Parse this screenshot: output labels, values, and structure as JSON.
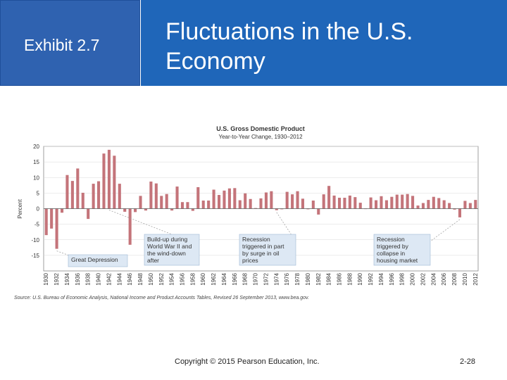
{
  "header": {
    "exhibit_label": "Exhibit 2.7",
    "slide_title": "Fluctuations in the U.S. Economy",
    "exhibit_bg": "#2f62b0",
    "title_bg": "#1f66b9"
  },
  "chart_data": {
    "type": "bar",
    "title": "U.S. Gross Domestic Product",
    "subtitle": "Year-to-Year Change, 1930–2012",
    "ylabel": "Percent",
    "ylim": [
      -20,
      20
    ],
    "yticks": [
      20,
      15,
      10,
      5,
      0,
      -5,
      -10,
      -15
    ],
    "grid": true,
    "bar_color": "#c4747a",
    "categories": [
      1930,
      1931,
      1932,
      1933,
      1934,
      1935,
      1936,
      1937,
      1938,
      1939,
      1940,
      1941,
      1942,
      1943,
      1944,
      1945,
      1946,
      1947,
      1948,
      1949,
      1950,
      1951,
      1952,
      1953,
      1954,
      1955,
      1956,
      1957,
      1958,
      1959,
      1960,
      1961,
      1962,
      1963,
      1964,
      1965,
      1966,
      1967,
      1968,
      1969,
      1970,
      1971,
      1972,
      1973,
      1974,
      1975,
      1976,
      1977,
      1978,
      1979,
      1980,
      1981,
      1982,
      1983,
      1984,
      1985,
      1986,
      1987,
      1988,
      1989,
      1990,
      1991,
      1992,
      1993,
      1994,
      1995,
      1996,
      1997,
      1998,
      1999,
      2000,
      2001,
      2002,
      2003,
      2004,
      2005,
      2006,
      2007,
      2008,
      2009,
      2010,
      2011,
      2012
    ],
    "values": [
      -8.5,
      -6.4,
      -12.9,
      -1.3,
      10.8,
      8.9,
      12.9,
      5.1,
      -3.3,
      8.0,
      8.8,
      17.7,
      18.9,
      17.0,
      8.0,
      -1.0,
      -11.6,
      -1.1,
      4.1,
      -0.6,
      8.7,
      8.1,
      4.1,
      4.7,
      -0.6,
      7.1,
      2.1,
      2.1,
      -0.7,
      6.9,
      2.6,
      2.6,
      6.1,
      4.4,
      5.8,
      6.5,
      6.6,
      2.7,
      4.9,
      3.1,
      0.2,
      3.3,
      5.2,
      5.6,
      -0.5,
      -0.2,
      5.4,
      4.6,
      5.6,
      3.2,
      -0.2,
      2.6,
      -1.9,
      4.6,
      7.3,
      4.2,
      3.5,
      3.5,
      4.2,
      3.7,
      1.9,
      -0.1,
      3.6,
      2.7,
      4.0,
      2.7,
      3.8,
      4.5,
      4.5,
      4.7,
      4.1,
      1.0,
      1.8,
      2.8,
      3.8,
      3.4,
      2.7,
      1.8,
      -0.3,
      -2.8,
      2.5,
      1.8,
      2.8
    ],
    "xtick_labels": [
      "1930",
      "1932",
      "1934",
      "1936",
      "1938",
      "1940",
      "1942",
      "1944",
      "1946",
      "1948",
      "1950",
      "1952",
      "1954",
      "1956",
      "1958",
      "1960",
      "1962",
      "1964",
      "1966",
      "1968",
      "1970",
      "1972",
      "1974",
      "1976",
      "1978",
      "1980",
      "1982",
      "1984",
      "1986",
      "1988",
      "1990",
      "1992",
      "1994",
      "1996",
      "1998",
      "2000",
      "2002",
      "2004",
      "2006",
      "2008",
      "2010",
      "2012"
    ],
    "annotations": [
      {
        "lines": [
          "Great Depression"
        ],
        "target_year": 1932
      },
      {
        "lines": [
          "Build-up during",
          "World War II and",
          "the wind-down",
          "after"
        ],
        "target_year": 1942
      },
      {
        "lines": [
          "Recession",
          "triggered in part",
          "by surge in oil",
          "prices"
        ],
        "target_year": 1974
      },
      {
        "lines": [
          "Recession",
          "triggered by",
          "collapse in",
          "housing market"
        ],
        "target_year": 2009
      }
    ],
    "source": "Source: U.S. Bureau of Economic Analysis, National Income and Product Accounts Tables, Revised 26 September 2013, www.bea.gov."
  },
  "footer": {
    "copyright": "Copyright © 2015 Pearson Education, Inc.",
    "page_number": "2-28"
  }
}
